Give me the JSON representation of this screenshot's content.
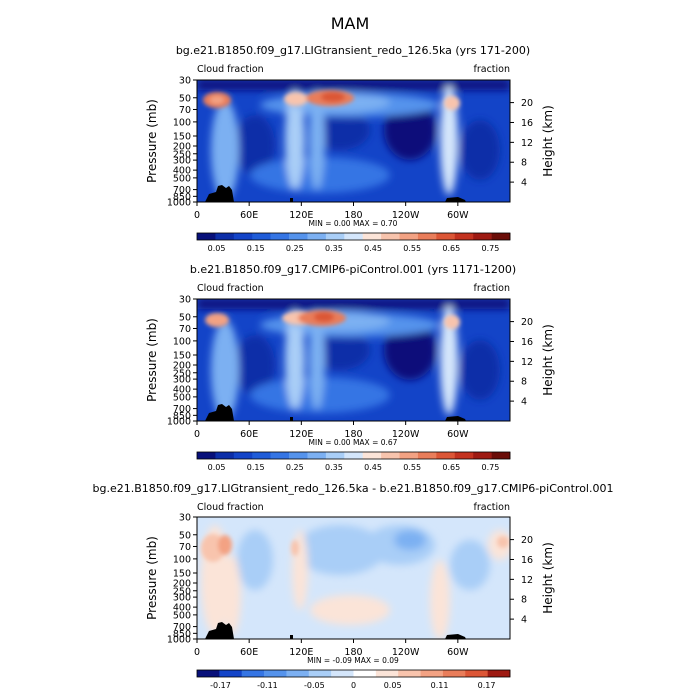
{
  "figure": {
    "title": "MAM"
  },
  "chart_data": [
    {
      "type": "heatmap",
      "title": "bg.e21.B1850.f09_g17.LIGtransient_redo_126.5ka (yrs 171-200)",
      "left_label": "Cloud fraction",
      "right_label": "fraction",
      "ylabel": "Pressure (mb)",
      "ylabel_right": "Height (km)",
      "x_ticks": [
        "0",
        "60E",
        "120E",
        "180",
        "120W",
        "60W"
      ],
      "y_ticks": [
        "30",
        "50",
        "70",
        "100",
        "150",
        "200",
        "250",
        "300",
        "400",
        "500",
        "700",
        "850",
        "1000"
      ],
      "y_right_ticks": [
        "20",
        "16",
        "12",
        "8",
        "4"
      ],
      "min_max_text": "MIN =    0.00   MAX =    0.70",
      "colorbar_labels": [
        "0.05",
        "0.15",
        "0.25",
        "0.35",
        "0.45",
        "0.55",
        "0.65",
        "0.75"
      ],
      "colorbar_levels": [
        0.0,
        0.05,
        0.1,
        0.15,
        0.2,
        0.25,
        0.3,
        0.35,
        0.4,
        0.45,
        0.5,
        0.55,
        0.6,
        0.65,
        0.7,
        0.75,
        0.8
      ],
      "colors": [
        "#08107a",
        "#0c2ea8",
        "#1344c8",
        "#1f5cd8",
        "#3575e4",
        "#5593ec",
        "#7cb0f2",
        "#a9cef7",
        "#d4e6fb",
        "#fbe4d8",
        "#f8c4ad",
        "#f3a283",
        "#e97d5a",
        "#dc5636",
        "#c3321f",
        "#9e1a12",
        "#6b0d08"
      ],
      "xlim": [
        0,
        360
      ],
      "ylim": [
        1000,
        30
      ],
      "max": 0.7
    },
    {
      "type": "heatmap",
      "title": "b.e21.B1850.f09_g17.CMIP6-piControl.001 (yrs 1171-1200)",
      "left_label": "Cloud fraction",
      "right_label": "fraction",
      "ylabel": "Pressure (mb)",
      "ylabel_right": "Height (km)",
      "x_ticks": [
        "0",
        "60E",
        "120E",
        "180",
        "120W",
        "60W"
      ],
      "y_ticks": [
        "30",
        "50",
        "70",
        "100",
        "150",
        "200",
        "250",
        "300",
        "400",
        "500",
        "700",
        "850",
        "1000"
      ],
      "y_right_ticks": [
        "20",
        "16",
        "12",
        "8",
        "4"
      ],
      "min_max_text": "MIN =    0.00   MAX =    0.67",
      "colorbar_labels": [
        "0.05",
        "0.15",
        "0.25",
        "0.35",
        "0.45",
        "0.55",
        "0.65",
        "0.75"
      ],
      "colorbar_levels": [
        0.0,
        0.05,
        0.1,
        0.15,
        0.2,
        0.25,
        0.3,
        0.35,
        0.4,
        0.45,
        0.5,
        0.55,
        0.6,
        0.65,
        0.7,
        0.75,
        0.8
      ],
      "colors": [
        "#08107a",
        "#0c2ea8",
        "#1344c8",
        "#1f5cd8",
        "#3575e4",
        "#5593ec",
        "#7cb0f2",
        "#a9cef7",
        "#d4e6fb",
        "#fbe4d8",
        "#f8c4ad",
        "#f3a283",
        "#e97d5a",
        "#dc5636",
        "#c3321f",
        "#9e1a12",
        "#6b0d08"
      ],
      "xlim": [
        0,
        360
      ],
      "ylim": [
        1000,
        30
      ],
      "max": 0.67
    },
    {
      "type": "heatmap",
      "title": "bg.e21.B1850.f09_g17.LIGtransient_redo_126.5ka - b.e21.B1850.f09_g17.CMIP6-piControl.001",
      "left_label": "Cloud fraction",
      "right_label": "fraction",
      "ylabel": "Pressure (mb)",
      "ylabel_right": "Height (km)",
      "x_ticks": [
        "0",
        "60E",
        "120E",
        "180",
        "120W",
        "60W"
      ],
      "y_ticks": [
        "30",
        "50",
        "70",
        "100",
        "150",
        "200",
        "250",
        "300",
        "400",
        "500",
        "700",
        "850",
        "1000"
      ],
      "y_right_ticks": [
        "20",
        "16",
        "12",
        "8",
        "4"
      ],
      "min_max_text": "MIN =   -0.09   MAX =    0.09",
      "colorbar_labels": [
        "-0.17",
        "-0.11",
        "-0.05",
        "0",
        "0.05",
        "0.11",
        "0.17"
      ],
      "colorbar_levels": [
        -0.2,
        -0.17,
        -0.14,
        -0.11,
        -0.08,
        -0.05,
        -0.02,
        0.0,
        0.02,
        0.05,
        0.08,
        0.11,
        0.14,
        0.17,
        0.2
      ],
      "colors": [
        "#08107a",
        "#1344c8",
        "#3575e4",
        "#5593ec",
        "#7cb0f2",
        "#a9cef7",
        "#d4e6fb",
        "#ffffff",
        "#fbe4d8",
        "#f8c4ad",
        "#f3a283",
        "#e97d5a",
        "#dc5636",
        "#9e1a12"
      ],
      "xlim": [
        0,
        360
      ],
      "ylim": [
        1000,
        30
      ],
      "min": -0.09,
      "max": 0.09
    }
  ]
}
